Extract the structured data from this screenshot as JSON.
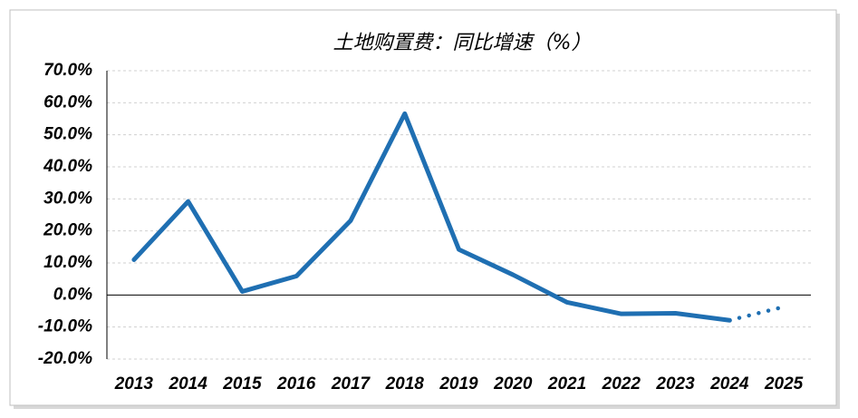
{
  "chart_data": {
    "type": "line",
    "title": "土地购置费：同比增速（%）",
    "categories": [
      "2013",
      "2014",
      "2015",
      "2016",
      "2017",
      "2018",
      "2019",
      "2020",
      "2021",
      "2022",
      "2023",
      "2024",
      "2025"
    ],
    "series": [
      {
        "color": "#1f6fb2",
        "style": "solid",
        "values": [
          11.0,
          29.2,
          1.1,
          5.9,
          23.2,
          56.6,
          14.2,
          6.3,
          -2.3,
          -5.9,
          -5.7,
          -7.9,
          null
        ]
      },
      {
        "color": "#1f6fb2",
        "style": "dotted",
        "values": [
          null,
          null,
          null,
          null,
          null,
          null,
          null,
          null,
          null,
          null,
          null,
          -7.9,
          -3.7
        ]
      }
    ],
    "ylim": [
      -20,
      70
    ],
    "yticks": [
      {
        "value": -20,
        "label": "-20.0%"
      },
      {
        "value": -10,
        "label": "-10.0%"
      },
      {
        "value": 0,
        "label": "0.0%"
      },
      {
        "value": 10,
        "label": "10.0%"
      },
      {
        "value": 20,
        "label": "20.0%"
      },
      {
        "value": 30,
        "label": "30.0%"
      },
      {
        "value": 40,
        "label": "40.0%"
      },
      {
        "value": 50,
        "label": "50.0%"
      },
      {
        "value": 60,
        "label": "60.0%"
      },
      {
        "value": 70,
        "label": "70.0%"
      }
    ],
    "grid": true
  }
}
